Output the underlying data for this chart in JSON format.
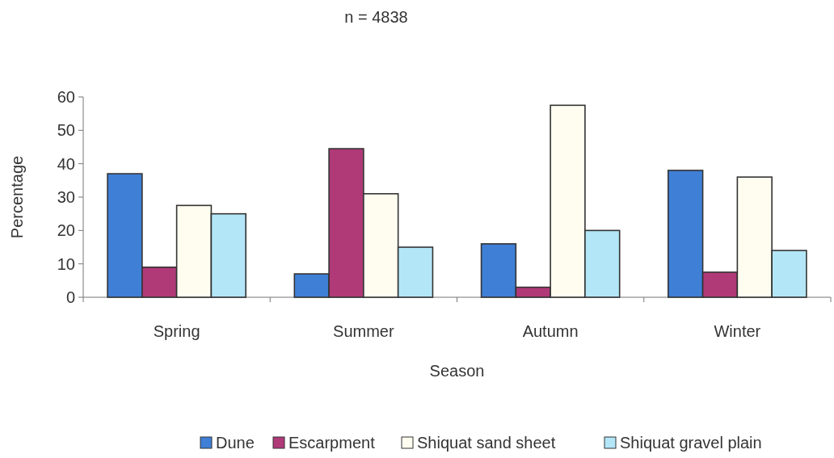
{
  "chart_data": {
    "type": "bar",
    "title": "n = 4838",
    "xlabel": "Season",
    "ylabel": "Percentage",
    "categories": [
      "Spring",
      "Summer",
      "Autumn",
      "Winter"
    ],
    "series": [
      {
        "name": "Dune",
        "color": "#3f7fd6",
        "values": [
          37,
          7,
          16,
          38
        ]
      },
      {
        "name": "Escarpment",
        "color": "#b03a78",
        "values": [
          9,
          44.5,
          3,
          7.5
        ]
      },
      {
        "name": "Shiquat sand sheet",
        "color": "#fffdf0",
        "values": [
          27.5,
          31,
          57.5,
          36
        ]
      },
      {
        "name": "Shiquat gravel plain",
        "color": "#b3e6f7",
        "values": [
          25,
          15,
          20,
          14
        ]
      }
    ],
    "ylim": [
      0,
      60
    ],
    "yticks": [
      0,
      10,
      20,
      30,
      40,
      50,
      60
    ],
    "grid": false,
    "legend": "bottom"
  }
}
